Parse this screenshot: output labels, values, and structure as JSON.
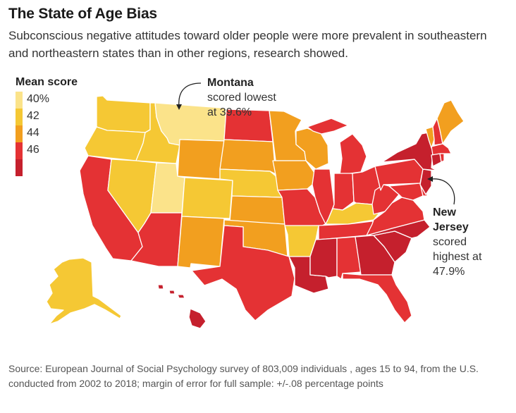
{
  "title": "The State of Age Bias",
  "subtitle": "Subconscious negative attitudes toward older people were more prevalent in southeastern and northeastern states than in other regions, research showed.",
  "legend": {
    "title": "Mean score",
    "items": [
      {
        "label": "40%",
        "color": "#fbe38a"
      },
      {
        "label": "42",
        "color": "#f5c834"
      },
      {
        "label": "44",
        "color": "#f29f1f"
      },
      {
        "label": "46",
        "color": "#e43234"
      },
      {
        "label": "",
        "color": "#c5202d"
      }
    ]
  },
  "annotations": {
    "montana": {
      "name": "Montana",
      "line1": "scored lowest",
      "line2": "at 39.6%"
    },
    "new_jersey": {
      "name1": "New",
      "name2": "Jersey",
      "line1": "scored",
      "line2": "highest at",
      "line3": "47.9%"
    }
  },
  "source": "Source: European Journal of Social Psychology survey of 803,009  individuals , ages 15 to 94, from the U.S.  conducted from 2002 to 2018; margin of error for full sample: +/-.08 percentage points",
  "colors": {
    "lowest": "#fbe38a",
    "low": "#f5c834",
    "mid": "#f29f1f",
    "high": "#e43234",
    "highest": "#c5202d"
  },
  "states": [
    {
      "name": "Washington",
      "level": "low"
    },
    {
      "name": "Oregon",
      "level": "low"
    },
    {
      "name": "California",
      "level": "high"
    },
    {
      "name": "Idaho",
      "level": "low"
    },
    {
      "name": "Nevada",
      "level": "low"
    },
    {
      "name": "Montana",
      "level": "lowest"
    },
    {
      "name": "Wyoming",
      "level": "mid"
    },
    {
      "name": "Utah",
      "level": "lowest"
    },
    {
      "name": "Arizona",
      "level": "high"
    },
    {
      "name": "Colorado",
      "level": "low"
    },
    {
      "name": "New Mexico",
      "level": "mid"
    },
    {
      "name": "North Dakota",
      "level": "high"
    },
    {
      "name": "South Dakota",
      "level": "mid"
    },
    {
      "name": "Nebraska",
      "level": "low"
    },
    {
      "name": "Kansas",
      "level": "mid"
    },
    {
      "name": "Oklahoma",
      "level": "mid"
    },
    {
      "name": "Texas",
      "level": "high"
    },
    {
      "name": "Minnesota",
      "level": "mid"
    },
    {
      "name": "Iowa",
      "level": "mid"
    },
    {
      "name": "Missouri",
      "level": "high"
    },
    {
      "name": "Arkansas",
      "level": "low"
    },
    {
      "name": "Louisiana",
      "level": "highest"
    },
    {
      "name": "Wisconsin",
      "level": "mid"
    },
    {
      "name": "Illinois",
      "level": "high"
    },
    {
      "name": "Michigan",
      "level": "high"
    },
    {
      "name": "Indiana",
      "level": "high"
    },
    {
      "name": "Ohio",
      "level": "high"
    },
    {
      "name": "Kentucky",
      "level": "low"
    },
    {
      "name": "Tennessee",
      "level": "high"
    },
    {
      "name": "Mississippi",
      "level": "highest"
    },
    {
      "name": "Alabama",
      "level": "high"
    },
    {
      "name": "Georgia",
      "level": "highest"
    },
    {
      "name": "Florida",
      "level": "high"
    },
    {
      "name": "South Carolina",
      "level": "highest"
    },
    {
      "name": "North Carolina",
      "level": "highest"
    },
    {
      "name": "Virginia",
      "level": "high"
    },
    {
      "name": "West Virginia",
      "level": "high"
    },
    {
      "name": "Pennsylvania",
      "level": "high"
    },
    {
      "name": "New York",
      "level": "highest"
    },
    {
      "name": "Vermont",
      "level": "mid"
    },
    {
      "name": "New Hampshire",
      "level": "high"
    },
    {
      "name": "Maine",
      "level": "mid"
    },
    {
      "name": "Massachusetts",
      "level": "high"
    },
    {
      "name": "Connecticut",
      "level": "highest"
    },
    {
      "name": "Rhode Island",
      "level": "high"
    },
    {
      "name": "New Jersey",
      "level": "highest"
    },
    {
      "name": "Delaware",
      "level": "high"
    },
    {
      "name": "Maryland",
      "level": "high"
    },
    {
      "name": "Alaska",
      "level": "low"
    },
    {
      "name": "Hawaii",
      "level": "highest"
    }
  ]
}
